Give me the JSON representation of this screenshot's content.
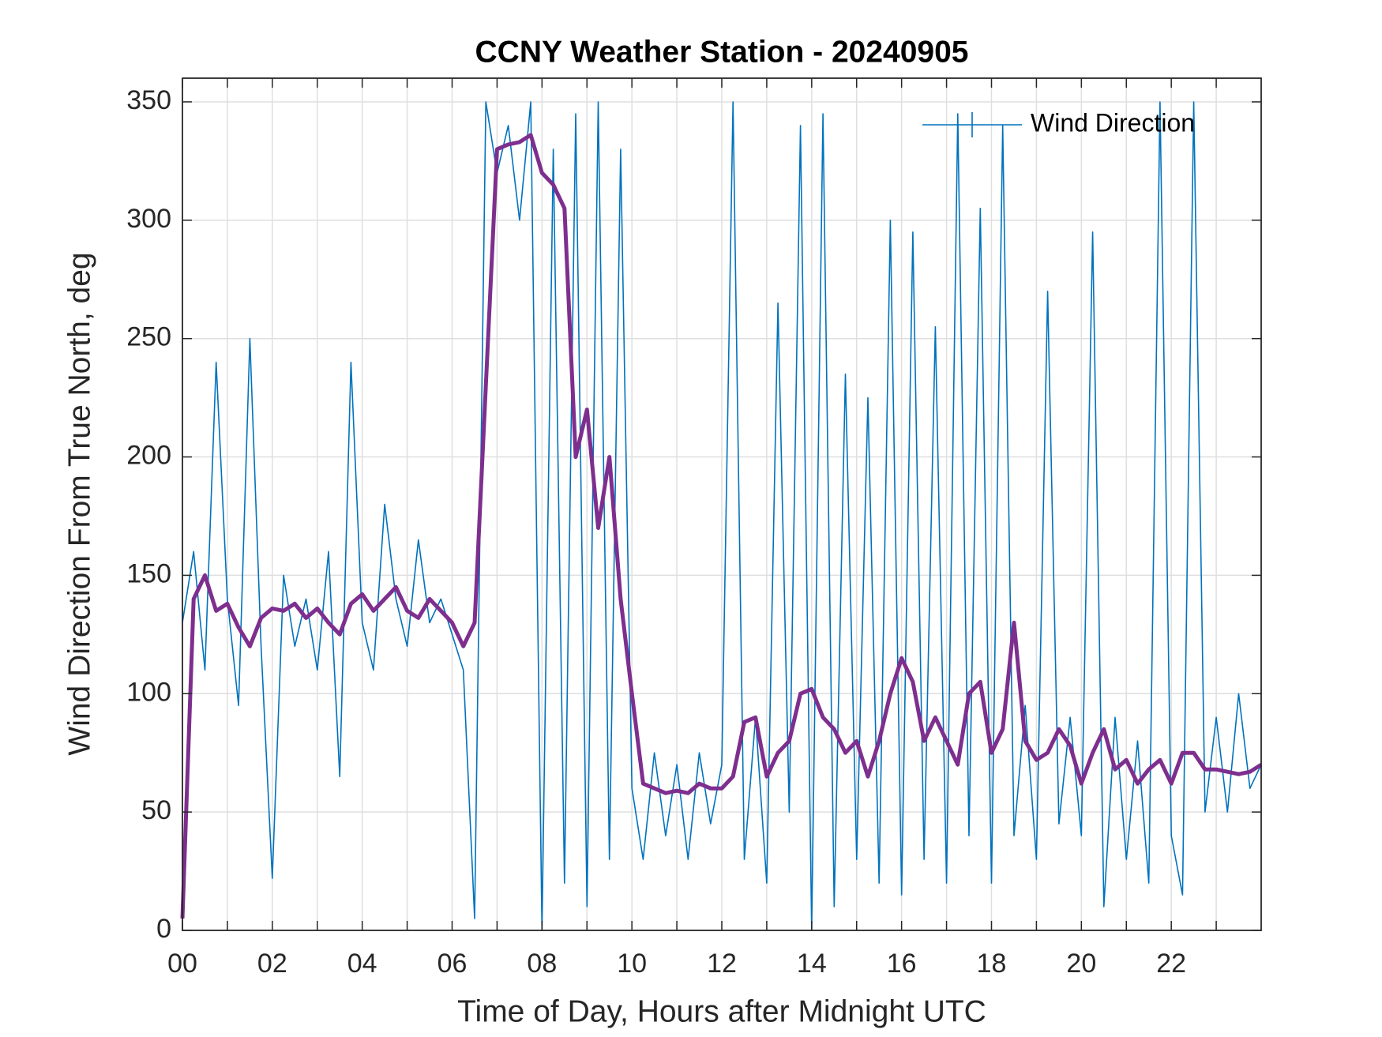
{
  "chart_data": {
    "type": "line",
    "title": "CCNY Weather Station - 20240905",
    "xlabel": "Time of Day, Hours after Midnight UTC",
    "ylabel": "Wind Direction From True North, deg",
    "xlim": [
      0,
      24
    ],
    "ylim": [
      0,
      360
    ],
    "xticks": [
      {
        "value": 0,
        "label": "00"
      },
      {
        "value": 2,
        "label": "02"
      },
      {
        "value": 4,
        "label": "04"
      },
      {
        "value": 6,
        "label": "06"
      },
      {
        "value": 8,
        "label": "08"
      },
      {
        "value": 10,
        "label": "10"
      },
      {
        "value": 12,
        "label": "12"
      },
      {
        "value": 14,
        "label": "14"
      },
      {
        "value": 16,
        "label": "16"
      },
      {
        "value": 18,
        "label": "18"
      },
      {
        "value": 20,
        "label": "20"
      },
      {
        "value": 22,
        "label": "22"
      }
    ],
    "xminorticks": [
      1,
      3,
      5,
      7,
      9,
      11,
      13,
      15,
      17,
      19,
      21,
      23
    ],
    "yticks": [
      0,
      50,
      100,
      150,
      200,
      250,
      300,
      350
    ],
    "grid": true,
    "legend": "northeast",
    "x": [
      0,
      0.25,
      0.5,
      0.75,
      1,
      1.25,
      1.5,
      1.75,
      2,
      2.25,
      2.5,
      2.75,
      3,
      3.25,
      3.5,
      3.75,
      4,
      4.25,
      4.5,
      4.75,
      5,
      5.25,
      5.5,
      5.75,
      6,
      6.25,
      6.5,
      6.75,
      7,
      7.25,
      7.5,
      7.75,
      8,
      8.25,
      8.5,
      8.75,
      9,
      9.25,
      9.5,
      9.75,
      10,
      10.25,
      10.5,
      10.75,
      11,
      11.25,
      11.5,
      11.75,
      12,
      12.25,
      12.5,
      12.75,
      13,
      13.25,
      13.5,
      13.75,
      14,
      14.25,
      14.5,
      14.75,
      15,
      15.25,
      15.5,
      15.75,
      16,
      16.25,
      16.5,
      16.75,
      17,
      17.25,
      17.5,
      17.75,
      18,
      18.25,
      18.5,
      18.75,
      19,
      19.25,
      19.5,
      19.75,
      20,
      20.25,
      20.5,
      20.75,
      21,
      21.25,
      21.5,
      21.75,
      22,
      22.25,
      22.5,
      22.75,
      23,
      23.25,
      23.5,
      23.75,
      24
    ],
    "series": [
      {
        "name": "Wind Direction",
        "color": "#0072bd",
        "width": 1.6,
        "legend": true,
        "values": [
          130,
          160,
          110,
          240,
          140,
          95,
          250,
          120,
          22,
          150,
          120,
          140,
          110,
          160,
          65,
          240,
          130,
          110,
          180,
          140,
          120,
          165,
          130,
          140,
          125,
          110,
          5,
          350,
          320,
          340,
          300,
          350,
          0,
          330,
          20,
          345,
          10,
          350,
          30,
          330,
          60,
          30,
          75,
          40,
          70,
          30,
          75,
          45,
          70,
          350,
          30,
          90,
          20,
          265,
          50,
          340,
          0,
          345,
          10,
          235,
          30,
          225,
          20,
          300,
          15,
          295,
          30,
          255,
          20,
          345,
          40,
          305,
          20,
          340,
          40,
          95,
          30,
          270,
          45,
          90,
          40,
          295,
          10,
          90,
          30,
          80,
          20,
          350,
          40,
          15,
          350,
          50,
          90,
          50,
          100,
          60,
          70
        ]
      },
      {
        "color": "#7e2f8e",
        "width": 5,
        "legend": false,
        "values": [
          5,
          140,
          150,
          135,
          138,
          128,
          120,
          132,
          136,
          135,
          138,
          132,
          136,
          130,
          125,
          138,
          142,
          135,
          140,
          145,
          135,
          132,
          140,
          135,
          130,
          120,
          130,
          230,
          330,
          332,
          333,
          336,
          320,
          315,
          305,
          200,
          220,
          170,
          200,
          140,
          100,
          62,
          60,
          58,
          59,
          58,
          62,
          60,
          60,
          65,
          88,
          90,
          65,
          75,
          80,
          100,
          102,
          90,
          85,
          75,
          80,
          65,
          80,
          100,
          115,
          105,
          80,
          90,
          80,
          70,
          100,
          105,
          75,
          85,
          130,
          80,
          72,
          75,
          85,
          78,
          62,
          75,
          85,
          68,
          72,
          62,
          68,
          72,
          62,
          75,
          75,
          68,
          68,
          67,
          66,
          67,
          70
        ]
      }
    ]
  }
}
